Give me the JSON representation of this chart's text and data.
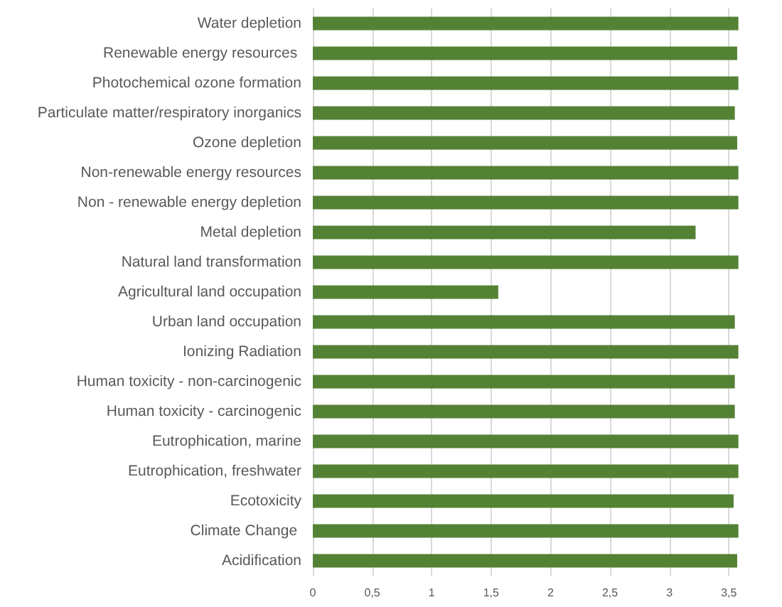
{
  "chart_data": {
    "type": "bar",
    "orientation": "horizontal",
    "categories": [
      "Water depletion",
      "Renewable energy resources ",
      "Photochemical ozone formation",
      "Particulate matter/respiratory inorganics",
      "Ozone depletion",
      "Non-renewable energy resources",
      "Non - renewable energy depletion",
      "Metal depletion",
      "Natural land transformation",
      "Agricultural land occupation",
      "Urban land occupation",
      "Ionizing Radiation",
      "Human toxicity - non-carcinogenic",
      "Human toxicity - carcinogenic",
      "Eutrophication, marine",
      "Eutrophication, freshwater",
      "Ecotoxicity",
      "Climate Change ",
      "Acidification"
    ],
    "values": [
      3.58,
      3.57,
      3.58,
      3.55,
      3.57,
      3.58,
      3.58,
      3.22,
      3.58,
      1.56,
      3.55,
      3.58,
      3.55,
      3.55,
      3.58,
      3.58,
      3.54,
      3.58,
      3.57
    ],
    "color": "#548235",
    "xlim": [
      0,
      3.6
    ],
    "xticks": [
      0,
      {
        "value": 0.5,
        "label": "0,5"
      },
      1,
      {
        "value": 1.5,
        "label": "1,5"
      },
      2,
      {
        "value": 2.5,
        "label": "2,5"
      },
      3,
      {
        "value": 3.5,
        "label": "3,5"
      }
    ],
    "grid": "x"
  }
}
